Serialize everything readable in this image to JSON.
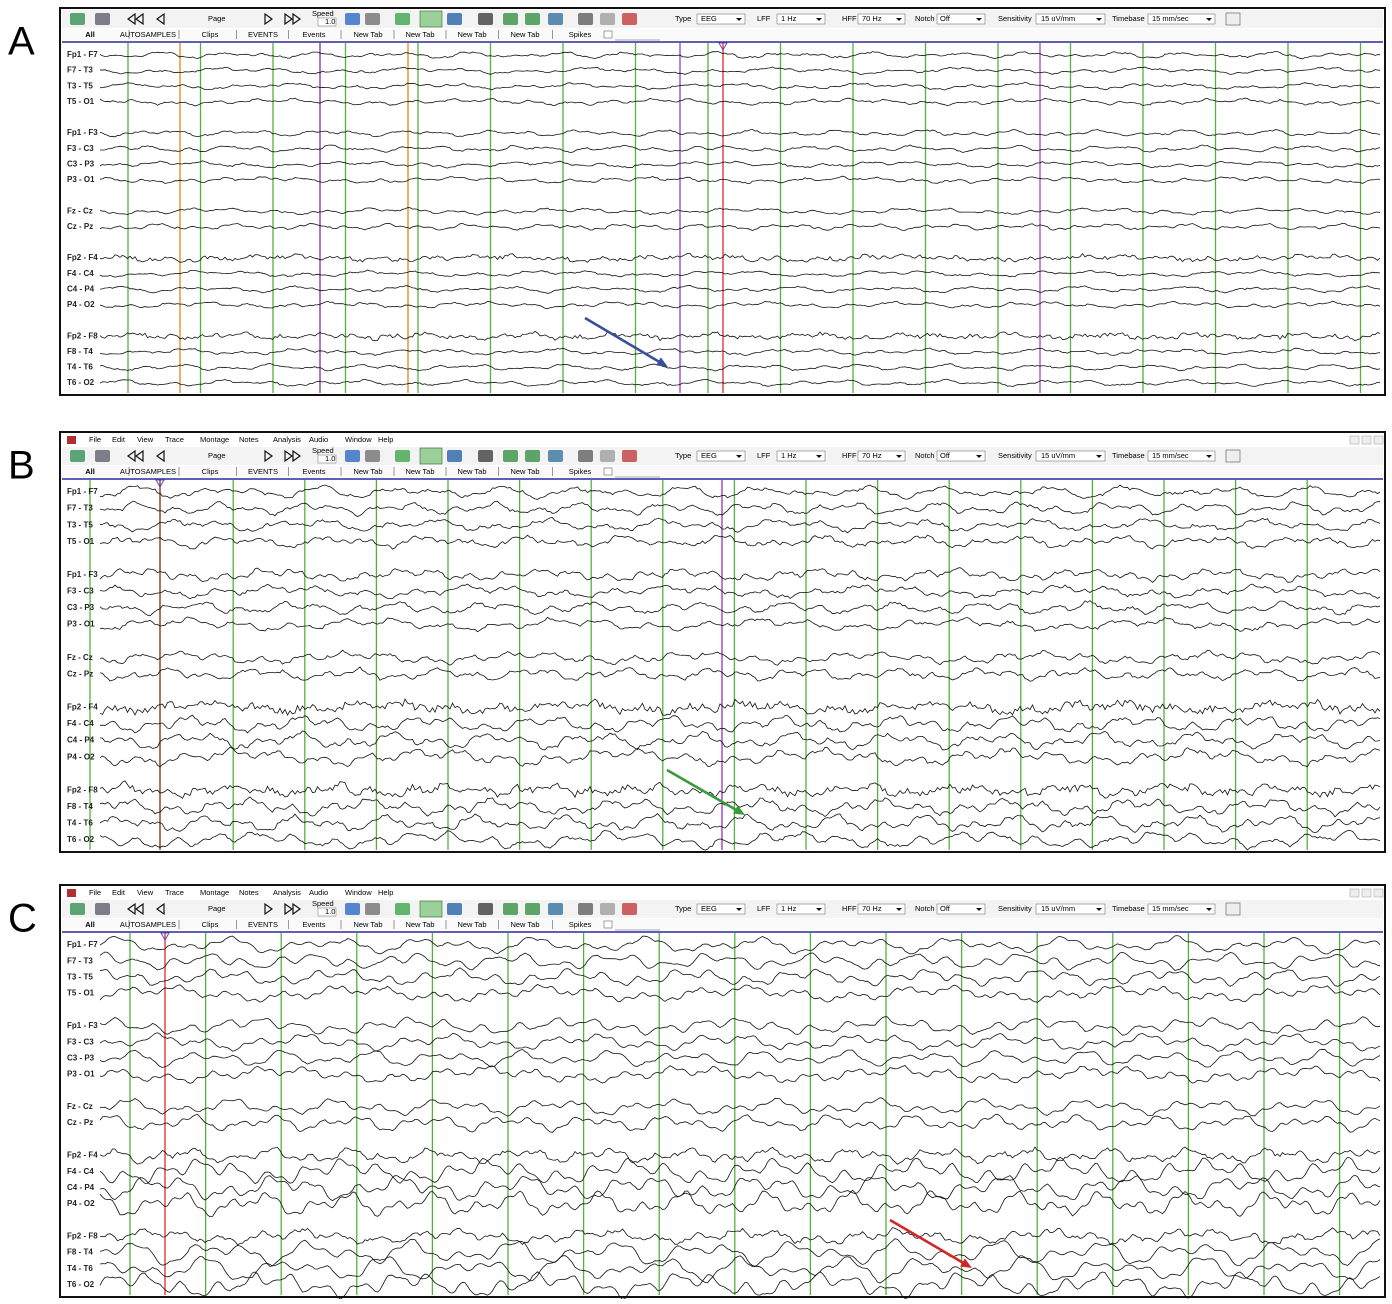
{
  "menu": [
    "File",
    "Edit",
    "View",
    "Trace",
    "Montage",
    "Notes",
    "Analysis",
    "Audio",
    "Window",
    "Help"
  ],
  "toolbar": [
    "Page",
    "Speed",
    "1.0",
    "Type",
    "EEG",
    "LFF",
    "1 Hz",
    "HFF",
    "70 Hz",
    "Notch",
    "Off",
    "Sensitivity",
    "15 uV/mm",
    "Timebase",
    "15 mm/sec"
  ],
  "tabs": [
    "All",
    "AUTOSAMPLES",
    "Clips",
    "EVENTS",
    "Events",
    "New Tab",
    "New Tab",
    "New Tab",
    "New Tab",
    "Spikes"
  ],
  "channels": [
    "Fp1 - F7",
    "F7 - T3",
    "T3 - T5",
    "T5 - O1",
    "Fp1 - F3",
    "F3 - C3",
    "C3 - P3",
    "P3 - O1",
    "Fz - Cz",
    "Cz - Pz",
    "Fp2 - F4",
    "F4 - C4",
    "C4 - P4",
    "P4 - O2",
    "Fp2 - F8",
    "F8 - T4",
    "T4 - T6",
    "T6 - O2"
  ],
  "panels": [
    {
      "label": "A",
      "menu_bar": false
    },
    {
      "label": "B",
      "menu_bar": true
    },
    {
      "label": "C",
      "menu_bar": true
    }
  ]
}
